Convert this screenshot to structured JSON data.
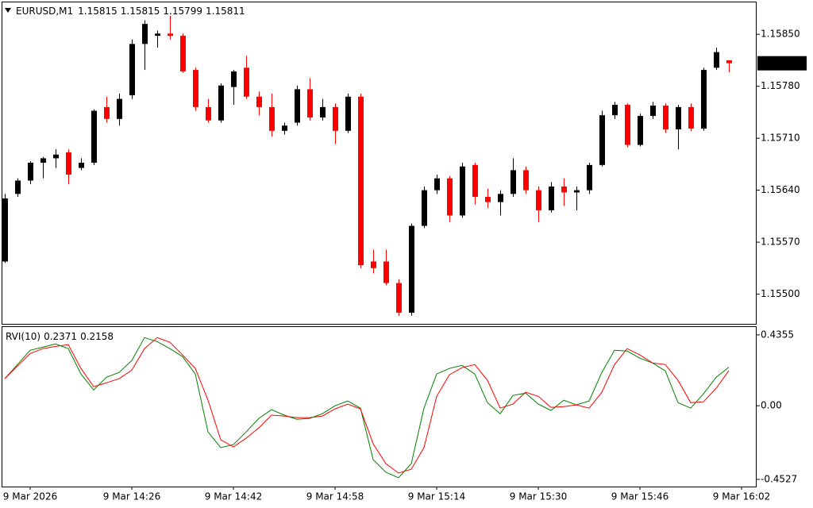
{
  "chart_data": [
    {
      "type": "candlestick",
      "symbol": "EURUSD,M1",
      "bull_color": "#000000",
      "bear_color": "#ff0000",
      "open": [
        1.15544,
        1.15635,
        1.15653,
        1.15677,
        1.15683,
        1.15691,
        1.1567,
        1.15677,
        1.15752,
        1.15736,
        1.15768,
        1.15837,
        1.15848,
        1.15851,
        1.15848,
        1.15802,
        1.15752,
        1.15734,
        1.15779,
        1.15805,
        1.15766,
        1.15752,
        1.1572,
        1.15731,
        1.15776,
        1.15738,
        1.15752,
        1.1572,
        1.15766,
        1.15544,
        1.15544,
        1.15515,
        1.15475,
        1.15592,
        1.1564,
        1.15656,
        1.15606,
        1.15674,
        1.15631,
        1.15624,
        1.15635,
        1.15667,
        1.1564,
        1.15613,
        1.15645,
        1.15637,
        1.1564,
        1.15674,
        1.15741,
        1.15755,
        1.15701,
        1.1574,
        1.15754,
        1.15722,
        1.15752,
        1.15723,
        1.15805,
        1.15815
      ],
      "high": [
        1.15635,
        1.15656,
        1.15679,
        1.15685,
        1.15695,
        1.15695,
        1.15683,
        1.15749,
        1.15766,
        1.1577,
        1.15843,
        1.15869,
        1.15855,
        1.15875,
        1.15851,
        1.15805,
        1.15763,
        1.15784,
        1.15802,
        1.15821,
        1.15773,
        1.1577,
        1.15731,
        1.15781,
        1.15791,
        1.15763,
        1.15757,
        1.1577,
        1.1577,
        1.1556,
        1.1556,
        1.1552,
        1.15595,
        1.15645,
        1.15661,
        1.15659,
        1.15677,
        1.15677,
        1.15642,
        1.1564,
        1.15683,
        1.15672,
        1.15645,
        1.15651,
        1.15656,
        1.15645,
        1.15677,
        1.15747,
        1.15759,
        1.15757,
        1.15743,
        1.15759,
        1.15757,
        1.15755,
        1.15757,
        1.15805,
        1.15832,
        1.15815
      ],
      "low": [
        1.15542,
        1.15631,
        1.15648,
        1.15656,
        1.1567,
        1.15648,
        1.15667,
        1.15674,
        1.15731,
        1.15727,
        1.15763,
        1.15802,
        1.15832,
        1.15843,
        1.15798,
        1.15747,
        1.15731,
        1.15731,
        1.15755,
        1.15763,
        1.15741,
        1.15712,
        1.15715,
        1.15727,
        1.15734,
        1.15734,
        1.15702,
        1.15717,
        1.15535,
        1.15528,
        1.15512,
        1.15471,
        1.15471,
        1.15589,
        1.15635,
        1.15597,
        1.15603,
        1.15621,
        1.15616,
        1.15606,
        1.15631,
        1.15635,
        1.15597,
        1.1561,
        1.15619,
        1.15613,
        1.15635,
        1.15672,
        1.15736,
        1.15698,
        1.15699,
        1.15736,
        1.15717,
        1.15695,
        1.1572,
        1.1572,
        1.15802,
        1.15799
      ],
      "close": [
        1.15629,
        1.15653,
        1.15677,
        1.15683,
        1.15688,
        1.15661,
        1.15677,
        1.15747,
        1.15736,
        1.15763,
        1.15837,
        1.15864,
        1.15851,
        1.15848,
        1.158,
        1.15752,
        1.15734,
        1.15781,
        1.158,
        1.15766,
        1.15752,
        1.1572,
        1.15727,
        1.15776,
        1.15738,
        1.15752,
        1.1572,
        1.15766,
        1.15539,
        1.15535,
        1.15515,
        1.15475,
        1.15592,
        1.1564,
        1.15656,
        1.15606,
        1.15672,
        1.15631,
        1.15624,
        1.15635,
        1.15667,
        1.1564,
        1.15613,
        1.15645,
        1.15637,
        1.1564,
        1.15674,
        1.15741,
        1.15755,
        1.15701,
        1.1574,
        1.15754,
        1.15722,
        1.15752,
        1.15723,
        1.15802,
        1.15826,
        1.15811
      ],
      "ylim": [
        1.1546,
        1.15893
      ],
      "yticks": [
        {
          "value": 1.1585,
          "label": "1.15850"
        },
        {
          "value": 1.1578,
          "label": "1.15780"
        },
        {
          "value": 1.1571,
          "label": "1.15710"
        },
        {
          "value": 1.1564,
          "label": "1.15640"
        },
        {
          "value": 1.1557,
          "label": "1.15570"
        },
        {
          "value": 1.155,
          "label": "1.15500"
        }
      ],
      "xticks": [
        {
          "value": 2,
          "label": "9 Mar 2026"
        },
        {
          "value": 10,
          "label": "9 Mar 14:26"
        },
        {
          "value": 18,
          "label": "9 Mar 14:42"
        },
        {
          "value": 26,
          "label": "9 Mar 14:58"
        },
        {
          "value": 34,
          "label": "9 Mar 15:14"
        },
        {
          "value": 42,
          "label": "9 Mar 15:30"
        },
        {
          "value": 50,
          "label": "9 Mar 15:46"
        },
        {
          "value": 58,
          "label": "9 Mar 16:02"
        }
      ]
    },
    {
      "type": "line",
      "title": "RVI(10)",
      "series": [
        {
          "color": "#008000",
          "values": [
            0.166,
            0.253,
            0.341,
            0.36,
            0.38,
            0.351,
            0.195,
            0.097,
            0.175,
            0.205,
            0.278,
            0.419,
            0.394,
            0.351,
            0.302,
            0.195,
            -0.161,
            -0.258,
            -0.239,
            -0.161,
            -0.078,
            -0.024,
            -0.058,
            -0.083,
            -0.078,
            -0.049,
            0.0,
            0.029,
            -0.015,
            -0.331,
            -0.409,
            -0.443,
            -0.356,
            -0.015,
            0.195,
            0.229,
            0.248,
            0.195,
            0.019,
            -0.049,
            0.063,
            0.078,
            0.01,
            -0.029,
            0.034,
            0.005,
            0.029,
            0.205,
            0.341,
            0.336,
            0.292,
            0.263,
            0.214,
            0.019,
            -0.015,
            0.073,
            0.175,
            0.2371
          ]
        },
        {
          "color": "#ff0000",
          "values": [
            0.166,
            0.244,
            0.321,
            0.351,
            0.365,
            0.375,
            0.229,
            0.117,
            0.141,
            0.166,
            0.219,
            0.351,
            0.419,
            0.39,
            0.312,
            0.229,
            0.034,
            -0.209,
            -0.253,
            -0.2,
            -0.136,
            -0.058,
            -0.063,
            -0.073,
            -0.073,
            -0.063,
            -0.019,
            0.01,
            -0.019,
            -0.234,
            -0.356,
            -0.414,
            -0.39,
            -0.258,
            0.058,
            0.19,
            0.234,
            0.253,
            0.156,
            -0.015,
            0.01,
            0.083,
            0.058,
            -0.01,
            -0.005,
            0.005,
            -0.015,
            0.083,
            0.253,
            0.351,
            0.312,
            0.263,
            0.253,
            0.156,
            0.019,
            0.024,
            0.107,
            0.2158
          ]
        }
      ],
      "ylim": [
        -0.4921,
        0.4839
      ],
      "yticks": [
        0.4355,
        {
          "value": 0,
          "label": "0.00"
        },
        -0.4527
      ]
    }
  ]
}
